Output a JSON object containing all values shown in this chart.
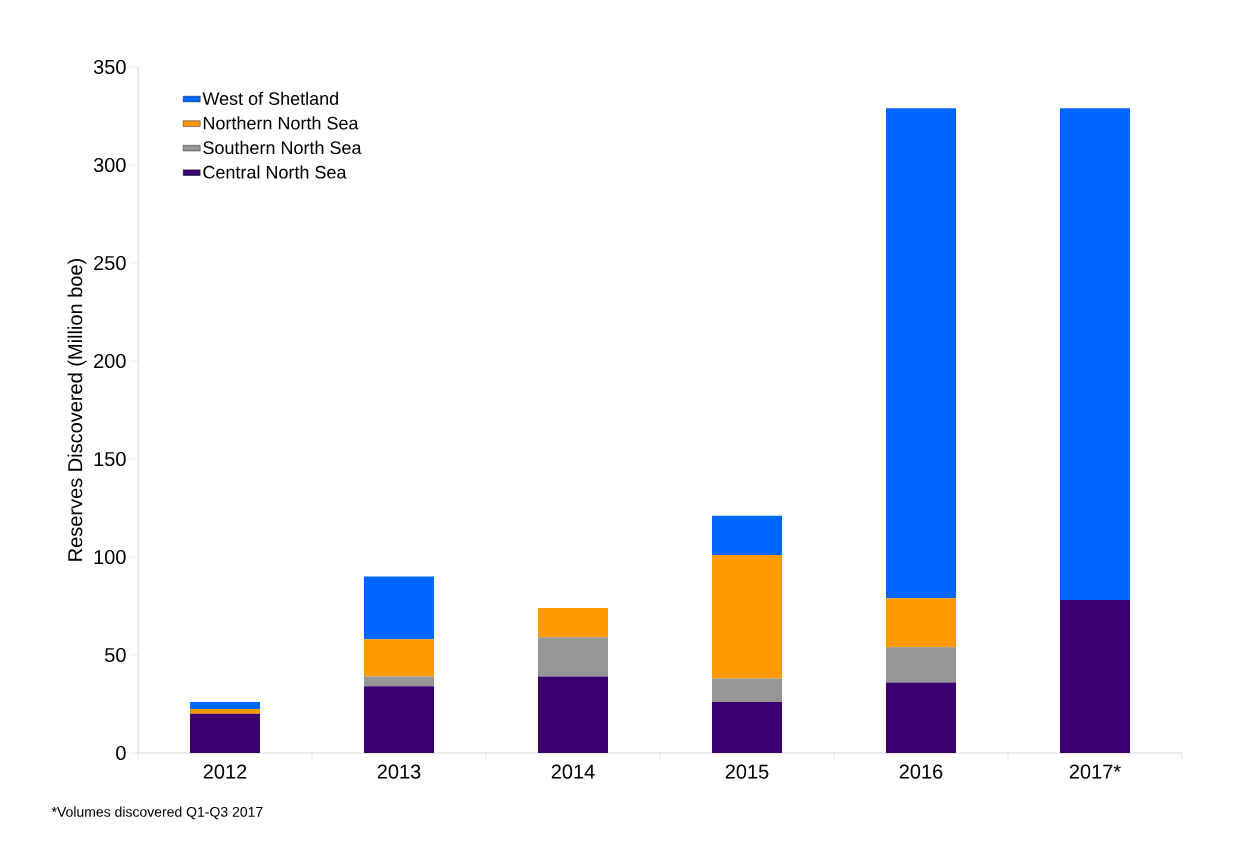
{
  "chart_data": {
    "type": "bar",
    "stacked": true,
    "ylabel": "Reserves Discovered (Million boe)",
    "categories": [
      "2012",
      "2013",
      "2014",
      "2015",
      "2016",
      "2017*"
    ],
    "series": [
      {
        "name": "Central North Sea",
        "color": "#3b006f",
        "values": [
          20,
          34,
          39,
          26,
          36,
          78
        ]
      },
      {
        "name": "Southern North Sea",
        "color": "#969696",
        "values": [
          0,
          5,
          20,
          12,
          18,
          0
        ]
      },
      {
        "name": "Northern North Sea",
        "color": "#ff9900",
        "values": [
          2.5,
          19,
          15,
          63,
          25,
          0
        ]
      },
      {
        "name": "West of Shetland",
        "color": "#0066ff",
        "values": [
          3.5,
          32,
          0,
          20,
          250,
          251
        ]
      }
    ],
    "ylim": [
      0,
      350
    ],
    "yticks": [
      0,
      50,
      100,
      150,
      200,
      250,
      300,
      350
    ],
    "legend": "top left",
    "annotations": [
      "*Volumes discovered Q1-Q3 2017"
    ]
  }
}
